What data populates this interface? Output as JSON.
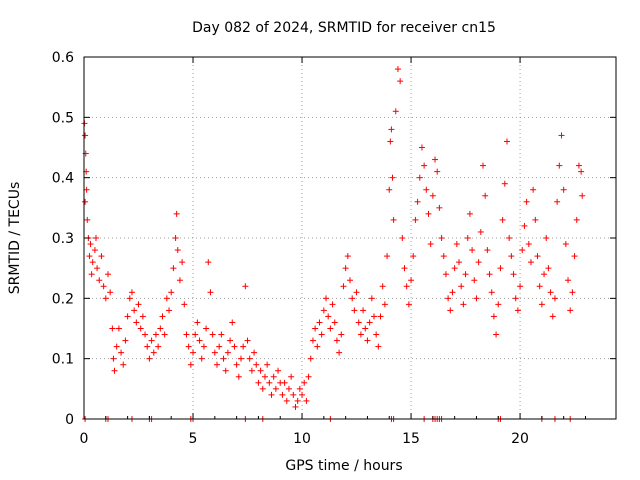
{
  "chart_data": {
    "type": "scatter",
    "title": "Day 082 of 2024, SRMTID for receiver cn15",
    "xlabel": "GPS time / hours",
    "ylabel": "SRMTID / TECUs",
    "xlim": [
      0,
      24.4
    ],
    "ylim": [
      0,
      0.6
    ],
    "x_ticks": [
      0,
      5,
      10,
      15,
      20
    ],
    "x_tick_labels": [
      "0",
      "5",
      "10",
      "15",
      "20"
    ],
    "y_ticks": [
      0,
      0.1,
      0.2,
      0.3,
      0.4,
      0.5,
      0.6
    ],
    "y_tick_labels": [
      "0",
      "0.1",
      "0.2",
      "0.3",
      "0.4",
      "0.5",
      "0.6"
    ],
    "grid": true,
    "marker": "+",
    "color": "#ff0000",
    "zero_marks_x": [
      0.05,
      1.0,
      1.1,
      2.2,
      3.0,
      3.1,
      4.9,
      5.0,
      7.4,
      8.2,
      11.3,
      14.1,
      14.2,
      15.6,
      16.0,
      16.1,
      16.2,
      16.3,
      16.4,
      19.0,
      19.1,
      21.0,
      21.6,
      22.3
    ],
    "series": [
      {
        "name": "SRMTID",
        "points": [
          [
            0.02,
            0.49
          ],
          [
            0.05,
            0.47
          ],
          [
            0.08,
            0.44
          ],
          [
            0.1,
            0.41
          ],
          [
            0.12,
            0.38
          ],
          [
            0.05,
            0.36
          ],
          [
            0.15,
            0.33
          ],
          [
            0.2,
            0.3
          ],
          [
            0.25,
            0.27
          ],
          [
            0.3,
            0.29
          ],
          [
            0.35,
            0.24
          ],
          [
            0.4,
            0.26
          ],
          [
            0.5,
            0.28
          ],
          [
            0.55,
            0.3
          ],
          [
            0.6,
            0.25
          ],
          [
            0.7,
            0.23
          ],
          [
            0.8,
            0.27
          ],
          [
            0.9,
            0.22
          ],
          [
            1.0,
            0.2
          ],
          [
            1.1,
            0.24
          ],
          [
            1.2,
            0.21
          ],
          [
            1.3,
            0.15
          ],
          [
            1.35,
            0.1
          ],
          [
            1.4,
            0.08
          ],
          [
            1.5,
            0.12
          ],
          [
            1.6,
            0.15
          ],
          [
            1.7,
            0.11
          ],
          [
            1.8,
            0.09
          ],
          [
            1.9,
            0.13
          ],
          [
            2.0,
            0.17
          ],
          [
            2.1,
            0.2
          ],
          [
            2.2,
            0.21
          ],
          [
            2.3,
            0.18
          ],
          [
            2.4,
            0.16
          ],
          [
            2.5,
            0.19
          ],
          [
            2.6,
            0.15
          ],
          [
            2.7,
            0.17
          ],
          [
            2.8,
            0.14
          ],
          [
            2.9,
            0.12
          ],
          [
            3.0,
            0.1
          ],
          [
            3.1,
            0.13
          ],
          [
            3.2,
            0.11
          ],
          [
            3.3,
            0.14
          ],
          [
            3.4,
            0.12
          ],
          [
            3.5,
            0.15
          ],
          [
            3.6,
            0.17
          ],
          [
            3.7,
            0.14
          ],
          [
            3.8,
            0.2
          ],
          [
            3.9,
            0.18
          ],
          [
            4.0,
            0.21
          ],
          [
            4.1,
            0.25
          ],
          [
            4.2,
            0.3
          ],
          [
            4.25,
            0.34
          ],
          [
            4.3,
            0.28
          ],
          [
            4.4,
            0.23
          ],
          [
            4.5,
            0.26
          ],
          [
            4.6,
            0.19
          ],
          [
            4.7,
            0.14
          ],
          [
            4.8,
            0.12
          ],
          [
            4.9,
            0.09
          ],
          [
            5.0,
            0.11
          ],
          [
            5.1,
            0.14
          ],
          [
            5.2,
            0.16
          ],
          [
            5.3,
            0.13
          ],
          [
            5.4,
            0.1
          ],
          [
            5.5,
            0.12
          ],
          [
            5.6,
            0.15
          ],
          [
            5.7,
            0.26
          ],
          [
            5.8,
            0.21
          ],
          [
            5.9,
            0.14
          ],
          [
            6.0,
            0.11
          ],
          [
            6.1,
            0.09
          ],
          [
            6.2,
            0.12
          ],
          [
            6.3,
            0.14
          ],
          [
            6.4,
            0.1
          ],
          [
            6.5,
            0.08
          ],
          [
            6.6,
            0.11
          ],
          [
            6.7,
            0.13
          ],
          [
            6.8,
            0.16
          ],
          [
            6.9,
            0.12
          ],
          [
            7.0,
            0.09
          ],
          [
            7.1,
            0.07
          ],
          [
            7.2,
            0.1
          ],
          [
            7.3,
            0.12
          ],
          [
            7.4,
            0.22
          ],
          [
            7.5,
            0.13
          ],
          [
            7.6,
            0.1
          ],
          [
            7.7,
            0.08
          ],
          [
            7.8,
            0.11
          ],
          [
            7.9,
            0.09
          ],
          [
            8.0,
            0.06
          ],
          [
            8.1,
            0.08
          ],
          [
            8.2,
            0.05
          ],
          [
            8.3,
            0.07
          ],
          [
            8.4,
            0.09
          ],
          [
            8.5,
            0.06
          ],
          [
            8.6,
            0.04
          ],
          [
            8.7,
            0.07
          ],
          [
            8.8,
            0.05
          ],
          [
            8.9,
            0.08
          ],
          [
            9.0,
            0.06
          ],
          [
            9.1,
            0.04
          ],
          [
            9.2,
            0.06
          ],
          [
            9.3,
            0.03
          ],
          [
            9.4,
            0.05
          ],
          [
            9.5,
            0.07
          ],
          [
            9.6,
            0.04
          ],
          [
            9.7,
            0.02
          ],
          [
            9.8,
            0.03
          ],
          [
            9.9,
            0.05
          ],
          [
            10.0,
            0.04
          ],
          [
            10.1,
            0.06
          ],
          [
            10.2,
            0.03
          ],
          [
            10.3,
            0.07
          ],
          [
            10.4,
            0.1
          ],
          [
            10.5,
            0.13
          ],
          [
            10.6,
            0.15
          ],
          [
            10.7,
            0.12
          ],
          [
            10.8,
            0.16
          ],
          [
            10.9,
            0.14
          ],
          [
            11.0,
            0.18
          ],
          [
            11.1,
            0.2
          ],
          [
            11.2,
            0.17
          ],
          [
            11.3,
            0.15
          ],
          [
            11.4,
            0.19
          ],
          [
            11.5,
            0.16
          ],
          [
            11.6,
            0.13
          ],
          [
            11.7,
            0.11
          ],
          [
            11.8,
            0.14
          ],
          [
            11.9,
            0.22
          ],
          [
            12.0,
            0.25
          ],
          [
            12.1,
            0.27
          ],
          [
            12.2,
            0.23
          ],
          [
            12.3,
            0.2
          ],
          [
            12.4,
            0.18
          ],
          [
            12.5,
            0.21
          ],
          [
            12.6,
            0.16
          ],
          [
            12.7,
            0.14
          ],
          [
            12.8,
            0.18
          ],
          [
            12.9,
            0.15
          ],
          [
            13.0,
            0.13
          ],
          [
            13.1,
            0.16
          ],
          [
            13.2,
            0.2
          ],
          [
            13.3,
            0.17
          ],
          [
            13.4,
            0.14
          ],
          [
            13.5,
            0.12
          ],
          [
            13.6,
            0.17
          ],
          [
            13.7,
            0.22
          ],
          [
            13.8,
            0.19
          ],
          [
            13.9,
            0.27
          ],
          [
            14.0,
            0.38
          ],
          [
            14.05,
            0.46
          ],
          [
            14.1,
            0.48
          ],
          [
            14.15,
            0.4
          ],
          [
            14.2,
            0.33
          ],
          [
            14.3,
            0.51
          ],
          [
            14.4,
            0.58
          ],
          [
            14.5,
            0.56
          ],
          [
            14.6,
            0.3
          ],
          [
            14.7,
            0.25
          ],
          [
            14.8,
            0.22
          ],
          [
            14.9,
            0.19
          ],
          [
            15.0,
            0.23
          ],
          [
            15.1,
            0.27
          ],
          [
            15.2,
            0.33
          ],
          [
            15.3,
            0.36
          ],
          [
            15.4,
            0.4
          ],
          [
            15.5,
            0.45
          ],
          [
            15.6,
            0.42
          ],
          [
            15.7,
            0.38
          ],
          [
            15.8,
            0.34
          ],
          [
            15.9,
            0.29
          ],
          [
            16.0,
            0.37
          ],
          [
            16.1,
            0.43
          ],
          [
            16.2,
            0.41
          ],
          [
            16.3,
            0.35
          ],
          [
            16.4,
            0.3
          ],
          [
            16.5,
            0.27
          ],
          [
            16.6,
            0.24
          ],
          [
            16.7,
            0.2
          ],
          [
            16.8,
            0.18
          ],
          [
            16.9,
            0.21
          ],
          [
            17.0,
            0.25
          ],
          [
            17.1,
            0.29
          ],
          [
            17.2,
            0.26
          ],
          [
            17.3,
            0.22
          ],
          [
            17.4,
            0.19
          ],
          [
            17.5,
            0.24
          ],
          [
            17.6,
            0.3
          ],
          [
            17.7,
            0.34
          ],
          [
            17.8,
            0.28
          ],
          [
            17.9,
            0.23
          ],
          [
            18.0,
            0.2
          ],
          [
            18.1,
            0.26
          ],
          [
            18.2,
            0.31
          ],
          [
            18.3,
            0.42
          ],
          [
            18.4,
            0.37
          ],
          [
            18.5,
            0.28
          ],
          [
            18.6,
            0.24
          ],
          [
            18.7,
            0.21
          ],
          [
            18.8,
            0.17
          ],
          [
            18.9,
            0.14
          ],
          [
            19.0,
            0.19
          ],
          [
            19.1,
            0.25
          ],
          [
            19.2,
            0.33
          ],
          [
            19.3,
            0.39
          ],
          [
            19.4,
            0.46
          ],
          [
            19.5,
            0.3
          ],
          [
            19.6,
            0.27
          ],
          [
            19.7,
            0.24
          ],
          [
            19.8,
            0.2
          ],
          [
            19.9,
            0.18
          ],
          [
            20.0,
            0.22
          ],
          [
            20.1,
            0.28
          ],
          [
            20.2,
            0.32
          ],
          [
            20.3,
            0.36
          ],
          [
            20.4,
            0.29
          ],
          [
            20.5,
            0.26
          ],
          [
            20.6,
            0.38
          ],
          [
            20.7,
            0.33
          ],
          [
            20.8,
            0.27
          ],
          [
            20.9,
            0.22
          ],
          [
            21.0,
            0.19
          ],
          [
            21.1,
            0.24
          ],
          [
            21.2,
            0.3
          ],
          [
            21.3,
            0.25
          ],
          [
            21.4,
            0.21
          ],
          [
            21.5,
            0.17
          ],
          [
            21.6,
            0.2
          ],
          [
            21.7,
            0.36
          ],
          [
            21.8,
            0.42
          ],
          [
            21.9,
            0.47
          ],
          [
            22.0,
            0.38
          ],
          [
            22.1,
            0.29
          ],
          [
            22.2,
            0.23
          ],
          [
            22.3,
            0.18
          ],
          [
            22.4,
            0.21
          ],
          [
            22.5,
            0.27
          ],
          [
            22.6,
            0.33
          ],
          [
            22.7,
            0.42
          ],
          [
            22.8,
            0.41
          ],
          [
            22.85,
            0.37
          ]
        ]
      }
    ]
  }
}
